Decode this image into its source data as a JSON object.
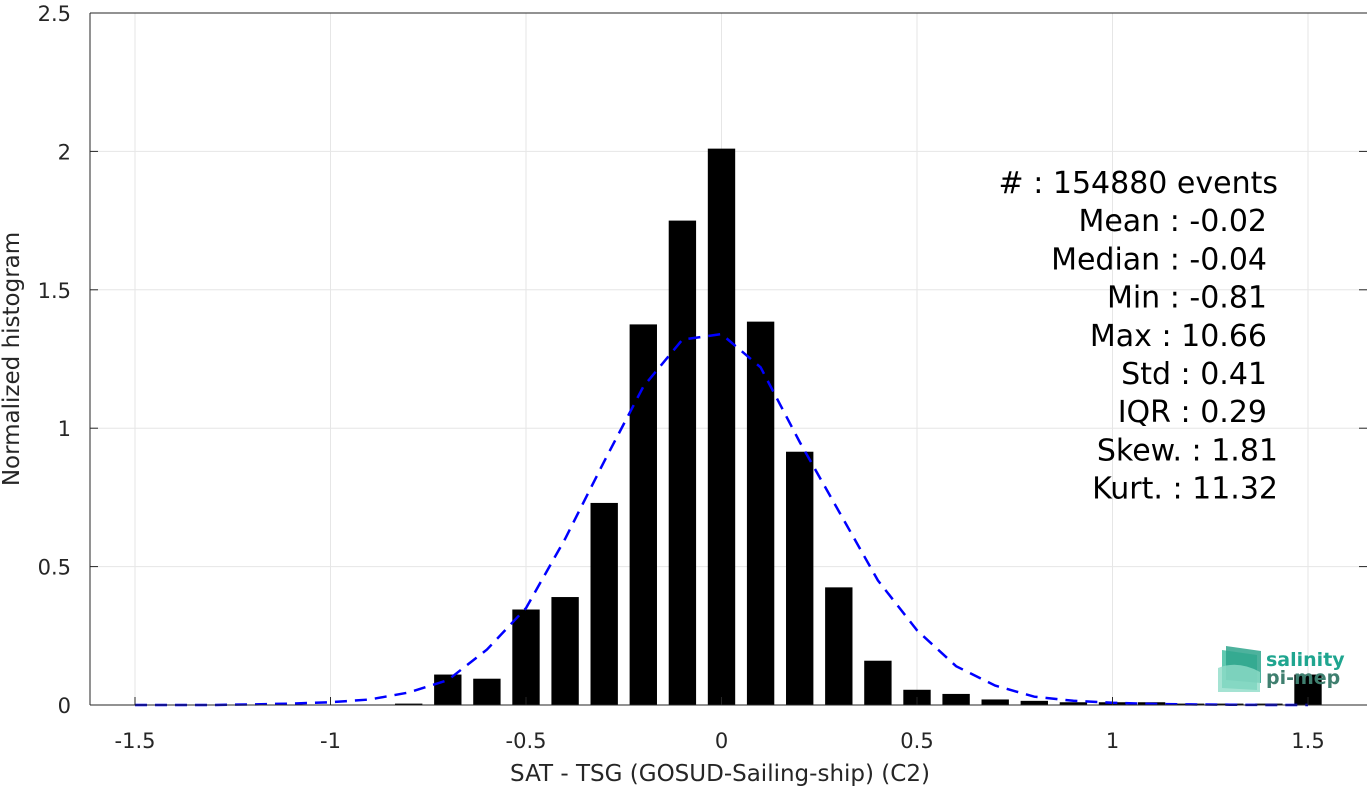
{
  "chart_data": {
    "type": "bar",
    "xlabel": "SAT - TSG (GOSUD-Sailing-ship) (C2)",
    "ylabel": "Normalized histogram",
    "xlim": [
      -1.6,
      1.65
    ],
    "ylim": [
      0,
      2.5
    ],
    "x_ticks": [
      -1.5,
      -1,
      -0.5,
      0,
      0.5,
      1,
      1.5
    ],
    "x_tick_labels": [
      "-1.5",
      "-1",
      "-0.5",
      "0",
      "0.5",
      "1",
      "1.5"
    ],
    "y_ticks": [
      0,
      0.5,
      1,
      1.5,
      2,
      2.5
    ],
    "y_tick_labels": [
      "0",
      "0.5",
      "1",
      "1.5",
      "2",
      "2.5"
    ],
    "grid": true,
    "bar_width": 0.07,
    "bars": {
      "x": [
        -0.8,
        -0.7,
        -0.6,
        -0.5,
        -0.4,
        -0.3,
        -0.2,
        -0.1,
        0.0,
        0.1,
        0.2,
        0.3,
        0.4,
        0.5,
        0.6,
        0.7,
        0.8,
        0.9,
        1.0,
        1.1,
        1.2,
        1.3,
        1.4,
        1.5
      ],
      "values": [
        0.005,
        0.11,
        0.095,
        0.345,
        0.39,
        0.73,
        1.375,
        1.75,
        2.01,
        1.385,
        0.915,
        0.425,
        0.16,
        0.055,
        0.04,
        0.02,
        0.015,
        0.01,
        0.01,
        0.01,
        0.005,
        0.005,
        0.005,
        0.11
      ],
      "color": "#000000"
    },
    "fit_curve": {
      "style": "dashed",
      "color": "#0000ff",
      "x": [
        -1.5,
        -1.4,
        -1.3,
        -1.2,
        -1.1,
        -1.0,
        -0.9,
        -0.8,
        -0.7,
        -0.6,
        -0.5,
        -0.4,
        -0.3,
        -0.2,
        -0.1,
        0.0,
        0.1,
        0.2,
        0.3,
        0.4,
        0.5,
        0.6,
        0.7,
        0.8,
        0.9,
        1.0,
        1.1,
        1.2,
        1.3,
        1.4,
        1.5
      ],
      "y": [
        0.0,
        0.0,
        0.0,
        0.002,
        0.005,
        0.01,
        0.02,
        0.045,
        0.09,
        0.2,
        0.35,
        0.6,
        0.88,
        1.15,
        1.32,
        1.34,
        1.22,
        0.95,
        0.7,
        0.45,
        0.27,
        0.14,
        0.07,
        0.03,
        0.015,
        0.008,
        0.004,
        0.002,
        0.001,
        0.0,
        0.0
      ]
    },
    "stats": [
      {
        "label": "#",
        "value": ": 154880 events"
      },
      {
        "label": "Mean",
        "value": ": -0.02"
      },
      {
        "label": "Median",
        "value": ": -0.04"
      },
      {
        "label": "Min",
        "value": ": -0.81"
      },
      {
        "label": "Max",
        "value": ": 10.66"
      },
      {
        "label": "Std",
        "value": ": 0.41"
      },
      {
        "label": "IQR",
        "value": ": 0.29"
      },
      {
        "label": "Skew.",
        "value": ": 1.81"
      },
      {
        "label": "Kurt.",
        "value": ": 11.32"
      }
    ]
  },
  "logo": {
    "line1": "salinity",
    "line2": "pi-mep",
    "color1": "#1fa58f",
    "color2": "#3f7f6f"
  }
}
